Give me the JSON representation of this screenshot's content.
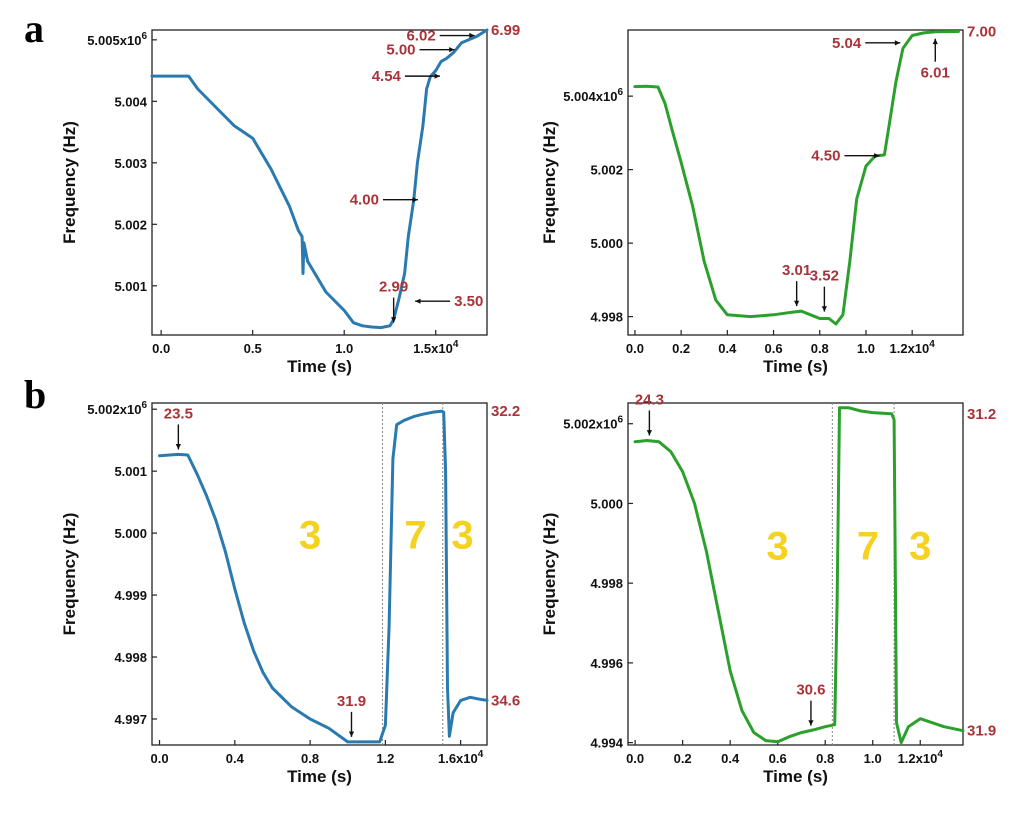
{
  "panel_labels": [
    "a",
    "b"
  ],
  "chart_data": [
    {
      "id": "a-left",
      "type": "line",
      "color": "#2a7ab0",
      "xlabel": "Time (s)",
      "ylabel": "Frequency (Hz)",
      "xlim": [
        -0.05,
        1.78
      ],
      "ylim": [
        5.0002,
        5.00516
      ],
      "x_ticks": [
        {
          "v": 0.0,
          "t": "0.0"
        },
        {
          "v": 0.5,
          "t": "0.5"
        },
        {
          "v": 1.0,
          "t": "1.0"
        },
        {
          "v": 1.5,
          "t": "1.5x10⁴"
        }
      ],
      "y_ticks": [
        {
          "v": 5.001,
          "t": "5.001"
        },
        {
          "v": 5.002,
          "t": "5.002"
        },
        {
          "v": 5.003,
          "t": "5.003"
        },
        {
          "v": 5.004,
          "t": "5.004"
        },
        {
          "v": 5.005,
          "t": "5.005x10⁶"
        }
      ],
      "x": [
        -0.05,
        0.05,
        0.15,
        0.2,
        0.3,
        0.4,
        0.5,
        0.6,
        0.65,
        0.7,
        0.75,
        0.77,
        0.775,
        0.78,
        0.8,
        0.9,
        1.0,
        1.05,
        1.1,
        1.15,
        1.2,
        1.25,
        1.27,
        1.3,
        1.33,
        1.35,
        1.38,
        1.4,
        1.43,
        1.45,
        1.47,
        1.5,
        1.53,
        1.56,
        1.6,
        1.64,
        1.68,
        1.72,
        1.78
      ],
      "y": [
        5.00441,
        5.00441,
        5.00441,
        5.0042,
        5.0039,
        5.0036,
        5.0034,
        5.0029,
        5.0026,
        5.0023,
        5.0019,
        5.0018,
        5.0012,
        5.0017,
        5.0014,
        5.0009,
        5.0006,
        5.0004,
        5.00035,
        5.00033,
        5.00032,
        5.00035,
        5.00045,
        5.0008,
        5.0012,
        5.0018,
        5.0024,
        5.003,
        5.0036,
        5.0042,
        5.0044,
        5.0045,
        5.00465,
        5.0047,
        5.0048,
        5.00495,
        5.005,
        5.00505,
        5.00516
      ],
      "annotations": [
        {
          "text": "2.99",
          "dir": "down",
          "x": 1.27,
          "y": 5.00032
        },
        {
          "text": "3.50",
          "dir": "left",
          "x": 1.36,
          "y": 5.00075
        },
        {
          "text": "4.00",
          "dir": "right",
          "x": 1.43,
          "y": 5.0024
        },
        {
          "text": "4.54",
          "dir": "right",
          "x": 1.55,
          "y": 5.00441
        },
        {
          "text": "5.00",
          "dir": "right",
          "x": 1.63,
          "y": 5.00484
        },
        {
          "text": "6.02",
          "dir": "right",
          "x": 1.74,
          "y": 5.00507
        },
        {
          "text": "6.99",
          "dir": "end",
          "x": 1.78,
          "y": 5.00516
        }
      ],
      "regions": [],
      "dividers": []
    },
    {
      "id": "a-right",
      "type": "line",
      "color": "#2ca02c",
      "xlabel": "Time (s)",
      "ylabel": "Frequency (Hz)",
      "xlim": [
        -0.03,
        1.42
      ],
      "ylim": [
        4.9975,
        5.0058
      ],
      "x_ticks": [
        {
          "v": 0.0,
          "t": "0.0"
        },
        {
          "v": 0.2,
          "t": "0.2"
        },
        {
          "v": 0.4,
          "t": "0.4"
        },
        {
          "v": 0.6,
          "t": "0.6"
        },
        {
          "v": 0.8,
          "t": "0.8"
        },
        {
          "v": 1.0,
          "t": "1.0"
        },
        {
          "v": 1.2,
          "t": "1.2x10⁴"
        }
      ],
      "y_ticks": [
        {
          "v": 4.998,
          "t": "4.998"
        },
        {
          "v": 5.0,
          "t": "5.000"
        },
        {
          "v": 5.002,
          "t": "5.002"
        },
        {
          "v": 5.004,
          "t": "5.004x10⁶"
        }
      ],
      "x": [
        0.0,
        0.05,
        0.1,
        0.13,
        0.16,
        0.2,
        0.25,
        0.3,
        0.35,
        0.4,
        0.5,
        0.6,
        0.68,
        0.72,
        0.76,
        0.8,
        0.84,
        0.87,
        0.9,
        0.93,
        0.96,
        1.0,
        1.04,
        1.08,
        1.1,
        1.13,
        1.16,
        1.2,
        1.25,
        1.3,
        1.4
      ],
      "y": [
        5.00426,
        5.00427,
        5.00425,
        5.0038,
        5.0031,
        5.0022,
        5.001,
        4.9995,
        4.99845,
        4.99805,
        4.998,
        4.99805,
        4.99812,
        4.99815,
        4.99805,
        4.99795,
        4.99795,
        4.9978,
        4.99805,
        4.9995,
        5.0012,
        5.0021,
        5.00237,
        5.0024,
        5.0032,
        5.0044,
        5.0053,
        5.00565,
        5.00572,
        5.00575,
        5.00576
      ],
      "annotations": [
        {
          "text": "3.01",
          "dir": "down",
          "x": 0.7,
          "y": 4.99815
        },
        {
          "text": "3.52",
          "dir": "down",
          "x": 0.82,
          "y": 4.998
        },
        {
          "text": "4.50",
          "dir": "right",
          "x": 1.08,
          "y": 5.00238
        },
        {
          "text": "5.04",
          "dir": "right",
          "x": 1.17,
          "y": 5.00545
        },
        {
          "text": "6.01",
          "dir": "up",
          "x": 1.3,
          "y": 5.0057
        },
        {
          "text": "7.00",
          "dir": "end",
          "x": 1.42,
          "y": 5.00576
        }
      ],
      "regions": [],
      "dividers": []
    },
    {
      "id": "b-left",
      "type": "line",
      "color": "#2a7ab0",
      "xlabel": "Time (s)",
      "ylabel": "Frequency (Hz)",
      "xlim": [
        -0.04,
        1.74
      ],
      "ylim": [
        4.99658,
        5.0021
      ],
      "x_ticks": [
        {
          "v": 0.0,
          "t": "0.0"
        },
        {
          "v": 0.4,
          "t": "0.4"
        },
        {
          "v": 0.8,
          "t": "0.8"
        },
        {
          "v": 1.2,
          "t": "1.2"
        },
        {
          "v": 1.6,
          "t": "1.6x10⁴"
        }
      ],
      "y_ticks": [
        {
          "v": 4.997,
          "t": "4.997"
        },
        {
          "v": 4.998,
          "t": "4.998"
        },
        {
          "v": 4.999,
          "t": "4.999"
        },
        {
          "v": 5.0,
          "t": "5.000"
        },
        {
          "v": 5.001,
          "t": "5.001"
        },
        {
          "v": 5.002,
          "t": "5.002x10⁶"
        }
      ],
      "x": [
        0.0,
        0.1,
        0.15,
        0.2,
        0.25,
        0.3,
        0.35,
        0.4,
        0.45,
        0.5,
        0.55,
        0.6,
        0.7,
        0.8,
        0.9,
        1.0,
        1.1,
        1.17,
        1.2,
        1.22,
        1.24,
        1.26,
        1.3,
        1.35,
        1.4,
        1.45,
        1.5,
        1.51,
        1.52,
        1.53,
        1.54,
        1.56,
        1.6,
        1.65,
        1.7,
        1.74
      ],
      "y": [
        5.00125,
        5.00127,
        5.00126,
        5.00095,
        5.0006,
        5.0002,
        4.9997,
        4.9991,
        4.99855,
        4.9981,
        4.99775,
        4.9975,
        4.9972,
        4.997,
        4.99685,
        4.99663,
        4.99663,
        4.99663,
        4.9969,
        4.9985,
        5.0012,
        5.00175,
        5.00182,
        5.00188,
        5.00192,
        5.00195,
        5.00197,
        5.00195,
        5.001,
        4.9975,
        4.99672,
        4.9971,
        4.9973,
        4.99735,
        4.99732,
        4.9973
      ],
      "annotations": [
        {
          "text": "23.5",
          "dir": "down",
          "x": 0.1,
          "y": 5.00127
        },
        {
          "text": "31.9",
          "dir": "down",
          "x": 1.02,
          "y": 4.99663
        },
        {
          "text": "32.2",
          "dir": "end",
          "x": 1.74,
          "y": 5.00197
        },
        {
          "text": "34.6",
          "dir": "end2",
          "x": 1.74,
          "y": 4.9973
        }
      ],
      "regions": [
        {
          "text": "3",
          "x": 0.8,
          "y": 4.99975
        },
        {
          "text": "7",
          "x": 1.36,
          "y": 4.99975
        },
        {
          "text": "3",
          "x": 1.61,
          "y": 4.99975
        }
      ],
      "dividers": [
        1.185,
        1.505
      ]
    },
    {
      "id": "b-right",
      "type": "line",
      "color": "#2ca02c",
      "xlabel": "Time (s)",
      "ylabel": "Frequency (Hz)",
      "xlim": [
        -0.03,
        1.38
      ],
      "ylim": [
        4.99394,
        5.00252
      ],
      "x_ticks": [
        {
          "v": 0.0,
          "t": "0.0"
        },
        {
          "v": 0.2,
          "t": "0.2"
        },
        {
          "v": 0.4,
          "t": "0.4"
        },
        {
          "v": 0.6,
          "t": "0.6"
        },
        {
          "v": 0.8,
          "t": "0.8"
        },
        {
          "v": 1.0,
          "t": "1.0"
        },
        {
          "v": 1.2,
          "t": "1.2x10⁴"
        }
      ],
      "y_ticks": [
        {
          "v": 4.994,
          "t": "4.994"
        },
        {
          "v": 4.996,
          "t": "4.996"
        },
        {
          "v": 4.998,
          "t": "4.998"
        },
        {
          "v": 5.0,
          "t": "5.000"
        },
        {
          "v": 5.002,
          "t": "5.002x10⁶"
        }
      ],
      "x": [
        0.0,
        0.05,
        0.1,
        0.15,
        0.2,
        0.25,
        0.3,
        0.35,
        0.4,
        0.45,
        0.5,
        0.55,
        0.6,
        0.65,
        0.7,
        0.75,
        0.8,
        0.84,
        0.85,
        0.86,
        0.9,
        0.95,
        1.0,
        1.05,
        1.08,
        1.09,
        1.1,
        1.12,
        1.15,
        1.2,
        1.25,
        1.3,
        1.38
      ],
      "y": [
        5.00155,
        5.00158,
        5.00155,
        5.0013,
        5.0008,
        5.0,
        4.9988,
        4.9973,
        4.9958,
        4.9948,
        4.99425,
        4.99405,
        4.99402,
        4.99415,
        4.99425,
        4.99432,
        4.9944,
        4.99445,
        4.9975,
        5.0024,
        5.0024,
        5.00232,
        5.00228,
        5.00226,
        5.00225,
        5.0021,
        4.9945,
        4.994,
        4.9944,
        4.9946,
        4.9945,
        4.9944,
        4.9943
      ],
      "annotations": [
        {
          "text": "24.3",
          "dir": "down",
          "x": 0.06,
          "y": 5.00158
        },
        {
          "text": "30.6",
          "dir": "down",
          "x": 0.74,
          "y": 4.9943
        },
        {
          "text": "31.2",
          "dir": "end",
          "x": 1.38,
          "y": 5.00225
        },
        {
          "text": "31.9",
          "dir": "end2",
          "x": 1.38,
          "y": 4.9943
        }
      ],
      "regions": [
        {
          "text": "3",
          "x": 0.6,
          "y": 4.9986
        },
        {
          "text": "7",
          "x": 0.98,
          "y": 4.9986
        },
        {
          "text": "3",
          "x": 1.2,
          "y": 4.9986
        }
      ],
      "dividers": [
        0.83,
        1.09
      ]
    }
  ]
}
